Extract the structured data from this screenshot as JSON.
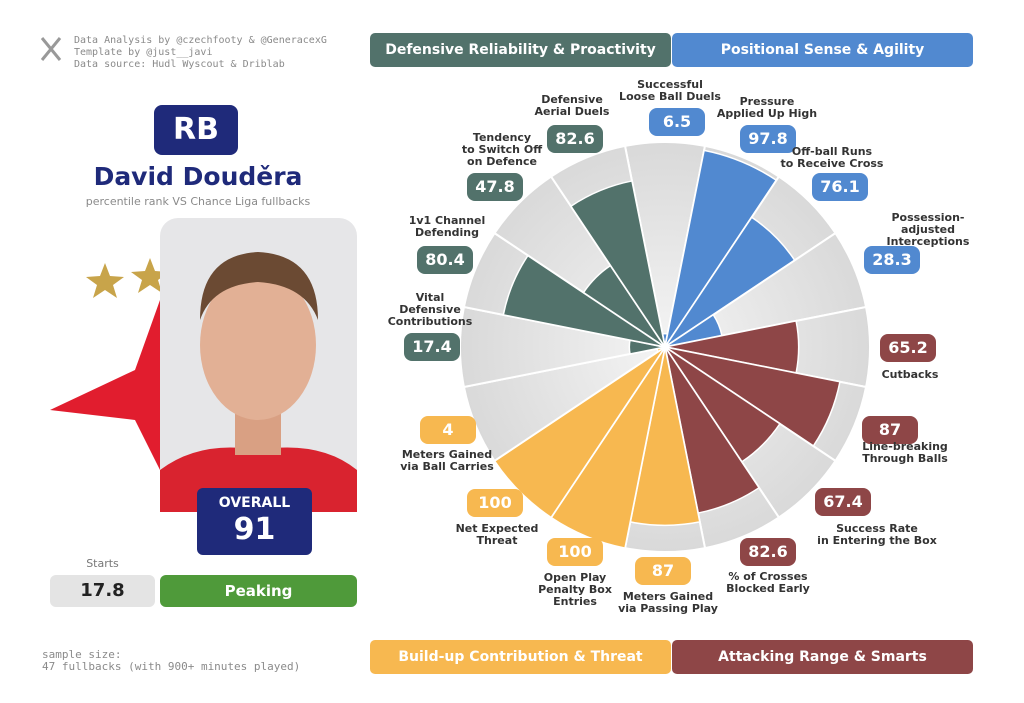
{
  "header": {
    "credits": [
      "Data Analysis by @czechfooty & @GeneracexG",
      "Template by @just__javi",
      "Data source: Hudl Wyscout & Driblab"
    ]
  },
  "player": {
    "position": "RB",
    "name": "David Douděra",
    "subtitle": "percentile rank VS Chance Liga fullbacks",
    "overall_label": "OVERALL",
    "overall": 91,
    "starts_label": "Starts",
    "starts": 17.8,
    "form": "Peaking"
  },
  "footer": {
    "sample_size": [
      "sample size:",
      "47 fullbacks (with 900+ minutes played)"
    ]
  },
  "chart_data": {
    "type": "pizza",
    "ylim": [
      0,
      100
    ],
    "series": [
      {
        "name": "Positional Sense & Agility",
        "color": "#5189d0",
        "categories": [
          "Successful\nLoose Ball Duels",
          "Pressure\nApplied Up High",
          "Off-ball Runs\nto Receive Cross",
          "Possession-adjusted\nInterceptions"
        ],
        "values": [
          6.5,
          97.8,
          76.1,
          28.3
        ]
      },
      {
        "name": "Attacking Range & Smarts",
        "color": "#8e4647",
        "categories": [
          "Cutbacks",
          "Line-breaking\nThrough Balls",
          "Success Rate\nin Entering the Box",
          "% of Crosses\nBlocked Early"
        ],
        "values": [
          65.2,
          87,
          67.4,
          82.6
        ]
      },
      {
        "name": "Build-up Contribution & Threat",
        "color": "#f7b850",
        "categories": [
          "Meters Gained\nvia Passing Play",
          "Open Play\nPenalty Box\nEntries",
          "Net Expected\nThreat",
          "Meters Gained\nvia Ball Carries"
        ],
        "values": [
          87,
          100,
          100,
          4
        ]
      },
      {
        "name": "Defensive Reliability & Proactivity",
        "color": "#52726b",
        "categories": [
          "Vital\nDefensive\nContributions",
          "1v1 Channel\nDefending",
          "Tendency\nto Switch Off\non Defence",
          "Defensive\nAerial Duels"
        ],
        "values": [
          17.4,
          80.4,
          47.8,
          82.6
        ]
      }
    ]
  }
}
